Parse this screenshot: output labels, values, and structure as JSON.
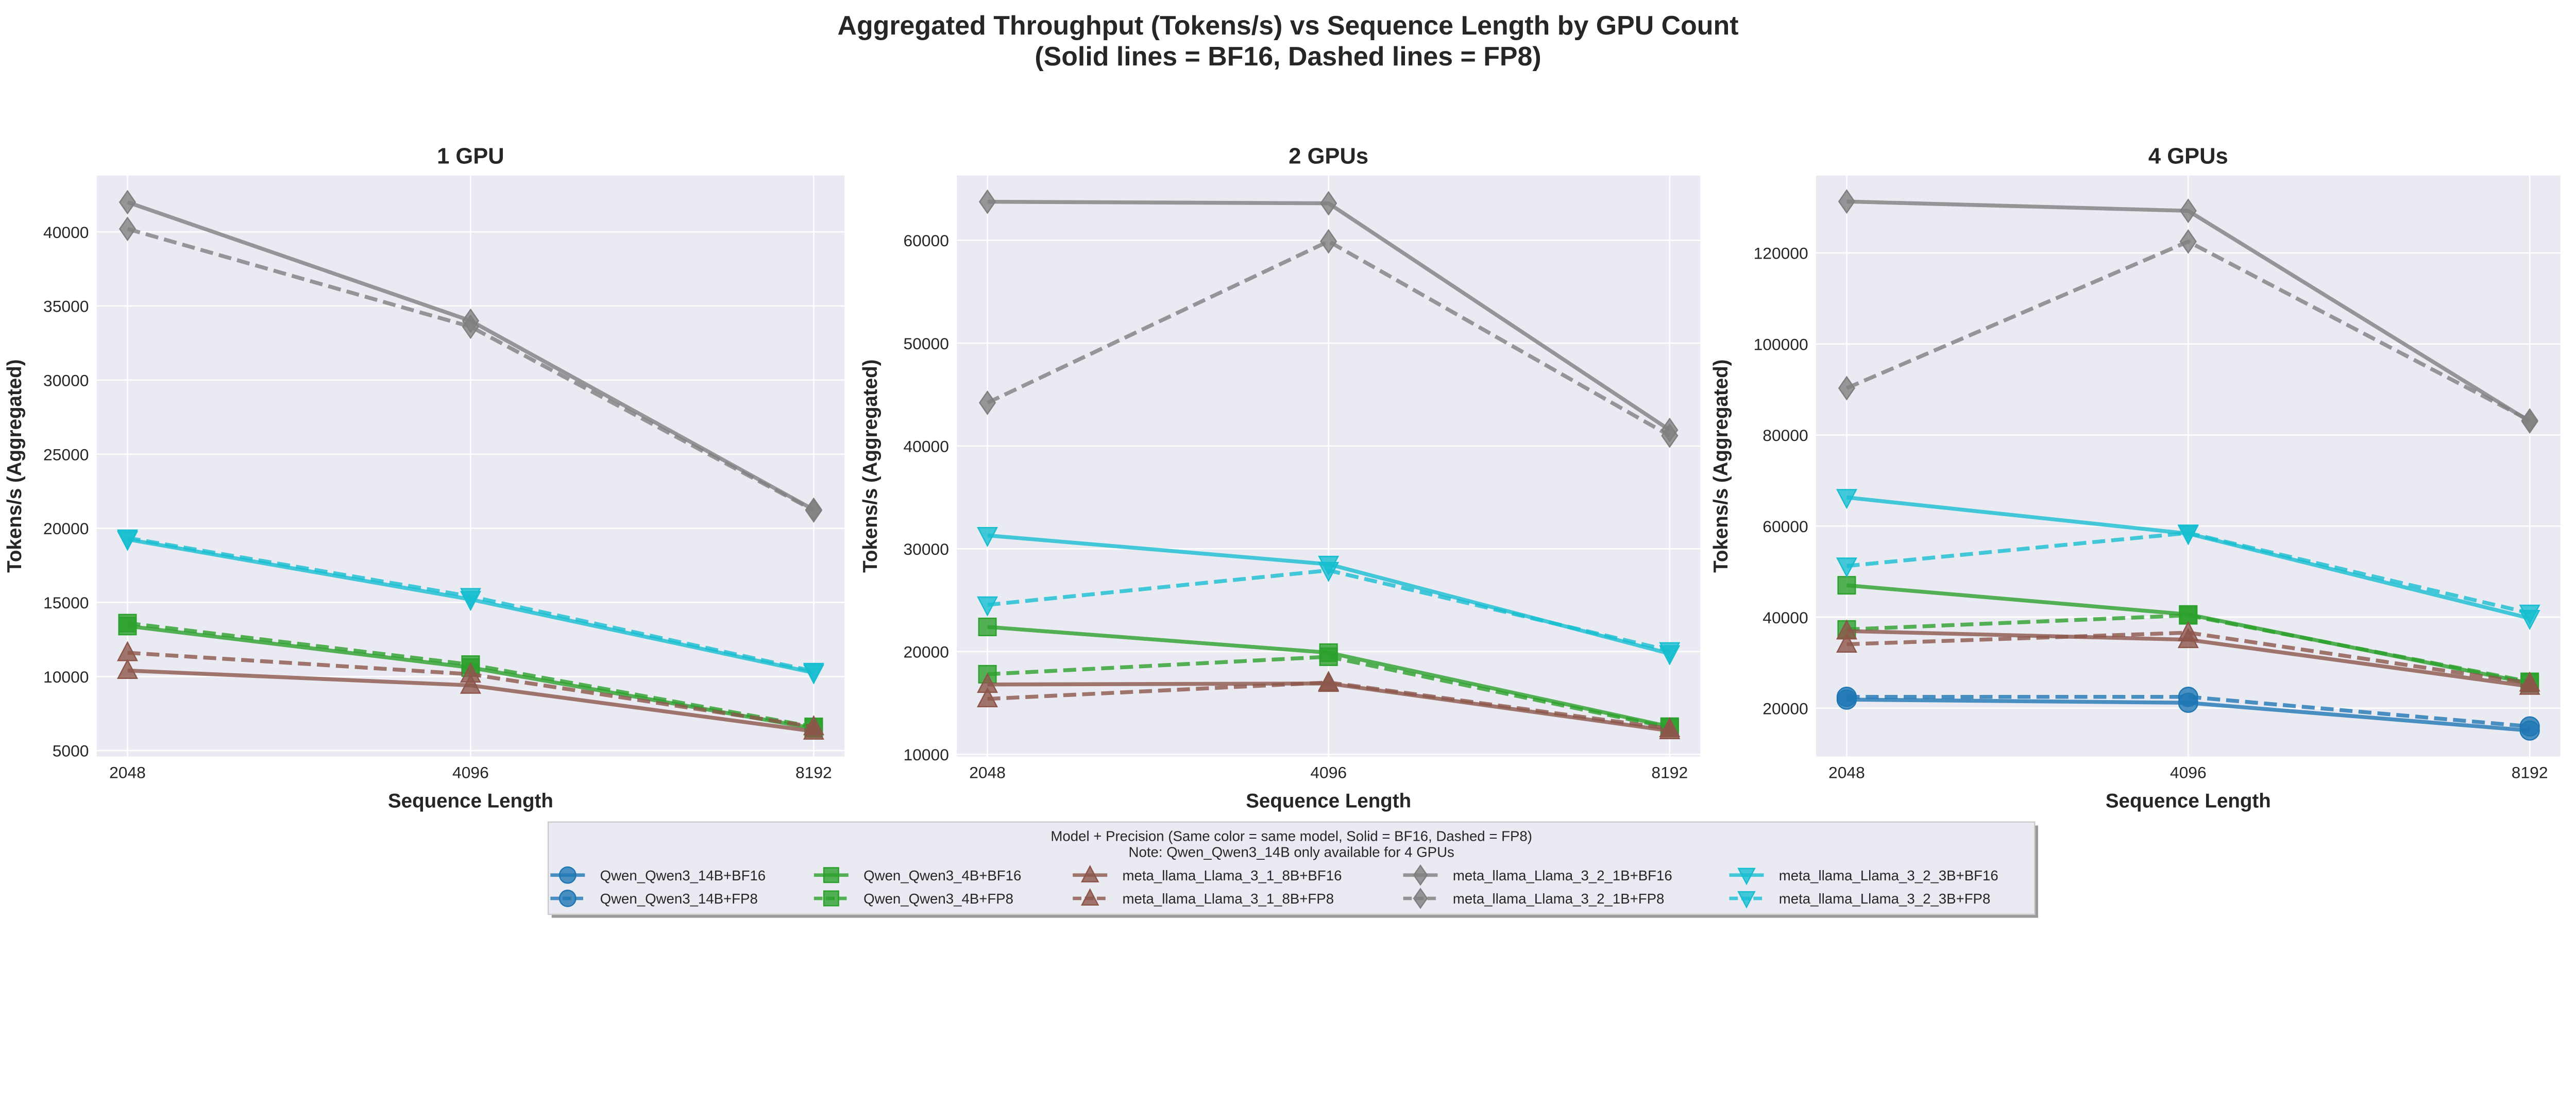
{
  "chart_data": {
    "suptitle": [
      "Aggregated Throughput (Tokens/s) vs Sequence Length by GPU Count",
      "(Solid lines = BF16, Dashed lines = FP8)"
    ],
    "colors": {
      "Qwen_Qwen3_14B": "#1f77b4",
      "Qwen_Qwen3_4B": "#2ca02c",
      "meta_llama_Llama_3_1_8B": "#8c564b",
      "meta_llama_Llama_3_2_1B": "#7f7f7f",
      "meta_llama_Llama_3_2_3B": "#17becf"
    },
    "markers": {
      "Qwen_Qwen3_14B": "circle",
      "Qwen_Qwen3_4B": "square",
      "meta_llama_Llama_3_1_8B": "triangle-up",
      "meta_llama_Llama_3_2_1B": "diamond",
      "meta_llama_Llama_3_2_3B": "triangle-down"
    },
    "legend": {
      "title": [
        "Model + Precision (Same color = same model, Solid = BF16, Dashed = FP8)",
        "Note: Qwen_Qwen3_14B only available for 4 GPUs"
      ],
      "placement": "bottom-center",
      "entries": [
        {
          "label": "Qwen_Qwen3_14B+BF16",
          "model": "Qwen_Qwen3_14B",
          "style": "solid"
        },
        {
          "label": "Qwen_Qwen3_14B+FP8",
          "model": "Qwen_Qwen3_14B",
          "style": "dashed"
        },
        {
          "label": "Qwen_Qwen3_4B+BF16",
          "model": "Qwen_Qwen3_4B",
          "style": "solid"
        },
        {
          "label": "Qwen_Qwen3_4B+FP8",
          "model": "Qwen_Qwen3_4B",
          "style": "dashed"
        },
        {
          "label": "meta_llama_Llama_3_1_8B+BF16",
          "model": "meta_llama_Llama_3_1_8B",
          "style": "solid"
        },
        {
          "label": "meta_llama_Llama_3_1_8B+FP8",
          "model": "meta_llama_Llama_3_1_8B",
          "style": "dashed"
        },
        {
          "label": "meta_llama_Llama_3_2_1B+BF16",
          "model": "meta_llama_Llama_3_2_1B",
          "style": "solid"
        },
        {
          "label": "meta_llama_Llama_3_2_1B+FP8",
          "model": "meta_llama_Llama_3_2_1B",
          "style": "dashed"
        },
        {
          "label": "meta_llama_Llama_3_2_3B+BF16",
          "model": "meta_llama_Llama_3_2_3B",
          "style": "solid"
        },
        {
          "label": "meta_llama_Llama_3_2_3B+FP8",
          "model": "meta_llama_Llama_3_2_3B",
          "style": "dashed"
        }
      ]
    },
    "panels": [
      {
        "type": "line",
        "title": "1 GPU",
        "xlabel": "Sequence Length",
        "ylabel": "Tokens/s (Aggregated)",
        "x": [
          2048,
          4096,
          8192
        ],
        "x_scale": "log2",
        "grid": true,
        "ylim": [
          4600,
          43800
        ],
        "yticks": [
          5000,
          10000,
          15000,
          20000,
          25000,
          30000,
          35000,
          40000
        ],
        "series": [
          {
            "name": "Qwen_Qwen3_4B+BF16",
            "values": [
              13400,
              10600,
              6500
            ]
          },
          {
            "name": "Qwen_Qwen3_4B+FP8",
            "values": [
              13600,
              10800,
              6600
            ]
          },
          {
            "name": "meta_llama_Llama_3_1_8B+BF16",
            "values": [
              10400,
              9400,
              6300
            ]
          },
          {
            "name": "meta_llama_Llama_3_1_8B+FP8",
            "values": [
              11600,
              10150,
              6600
            ]
          },
          {
            "name": "meta_llama_Llama_3_2_1B+BF16",
            "values": [
              42000,
              34000,
              21250
            ]
          },
          {
            "name": "meta_llama_Llama_3_2_1B+FP8",
            "values": [
              40200,
              33600,
              21200
            ]
          },
          {
            "name": "meta_llama_Llama_3_2_3B+BF16",
            "values": [
              19250,
              15200,
              10250
            ]
          },
          {
            "name": "meta_llama_Llama_3_2_3B+FP8",
            "values": [
              19350,
              15400,
              10350
            ]
          }
        ]
      },
      {
        "type": "line",
        "title": "2 GPUs",
        "xlabel": "Sequence Length",
        "ylabel": "Tokens/s (Aggregated)",
        "x": [
          2048,
          4096,
          8192
        ],
        "x_scale": "log2",
        "grid": true,
        "ylim": [
          9800,
          66300
        ],
        "yticks": [
          10000,
          20000,
          30000,
          40000,
          50000,
          60000
        ],
        "series": [
          {
            "name": "Qwen_Qwen3_4B+BF16",
            "values": [
              22400,
              19900,
              12700
            ]
          },
          {
            "name": "Qwen_Qwen3_4B+FP8",
            "values": [
              17800,
              19500,
              12600
            ]
          },
          {
            "name": "meta_llama_Llama_3_1_8B+BF16",
            "values": [
              16800,
              16900,
              12300
            ]
          },
          {
            "name": "meta_llama_Llama_3_1_8B+FP8",
            "values": [
              15400,
              17000,
              12500
            ]
          },
          {
            "name": "meta_llama_Llama_3_2_1B+BF16",
            "values": [
              63750,
              63600,
              41550
            ]
          },
          {
            "name": "meta_llama_Llama_3_2_1B+FP8",
            "values": [
              44200,
              59900,
              41000
            ]
          },
          {
            "name": "meta_llama_Llama_3_2_3B+BF16",
            "values": [
              31300,
              28500,
              19800
            ]
          },
          {
            "name": "meta_llama_Llama_3_2_3B+FP8",
            "values": [
              24550,
              27900,
              20100
            ]
          }
        ]
      },
      {
        "type": "line",
        "title": "4 GPUs",
        "xlabel": "Sequence Length",
        "ylabel": "Tokens/s (Aggregated)",
        "x": [
          2048,
          4096,
          8192
        ],
        "x_scale": "log2",
        "grid": true,
        "ylim": [
          9400,
          137000
        ],
        "yticks": [
          20000,
          40000,
          60000,
          80000,
          100000,
          120000
        ],
        "series": [
          {
            "name": "Qwen_Qwen3_14B+BF16",
            "values": [
              21900,
              21200,
              15100
            ]
          },
          {
            "name": "Qwen_Qwen3_14B+FP8",
            "values": [
              22500,
              22500,
              16000
            ]
          },
          {
            "name": "Qwen_Qwen3_4B+BF16",
            "values": [
              47000,
              40600,
              25500
            ]
          },
          {
            "name": "Qwen_Qwen3_4B+FP8",
            "values": [
              37300,
              40400,
              25800
            ]
          },
          {
            "name": "meta_llama_Llama_3_1_8B+BF16",
            "values": [
              36950,
              35050,
              24800
            ]
          },
          {
            "name": "meta_llama_Llama_3_1_8B+FP8",
            "values": [
              34050,
              36600,
              25500
            ]
          },
          {
            "name": "meta_llama_Llama_3_2_1B+BF16",
            "values": [
              131300,
              129250,
              83000
            ]
          },
          {
            "name": "meta_llama_Llama_3_2_1B+FP8",
            "values": [
              90300,
              122500,
              83200
            ]
          },
          {
            "name": "meta_llama_Llama_3_2_3B+BF16",
            "values": [
              66300,
              58350,
              39750
            ]
          },
          {
            "name": "meta_llama_Llama_3_2_3B+FP8",
            "values": [
              51250,
              58500,
              40900
            ]
          }
        ]
      }
    ]
  }
}
